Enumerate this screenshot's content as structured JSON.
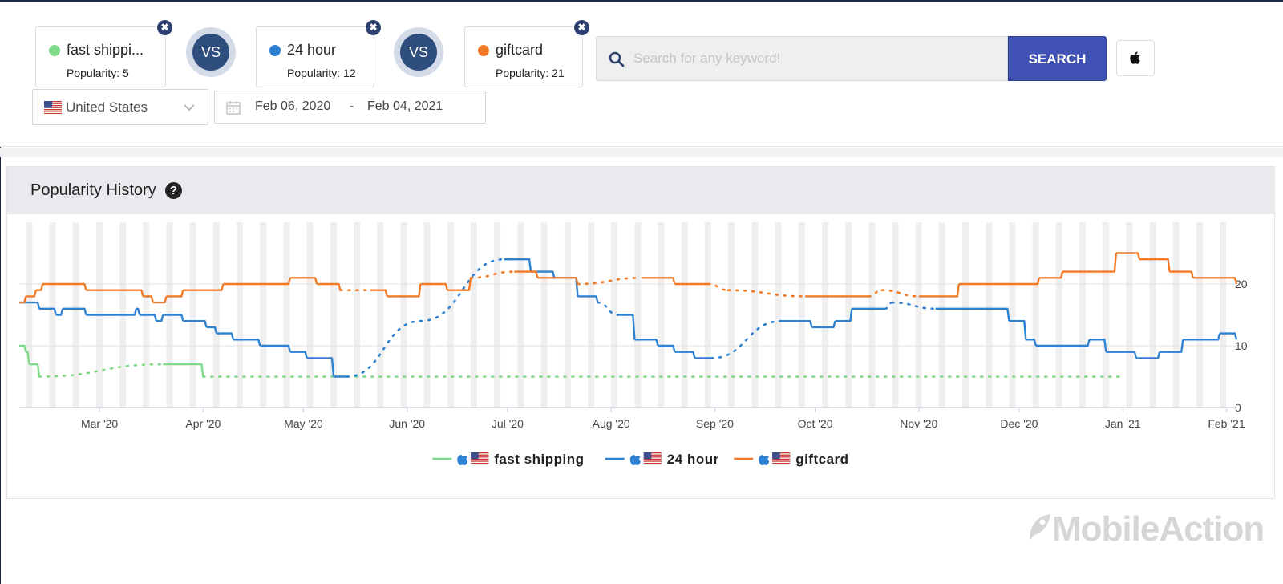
{
  "keywords": [
    {
      "name": "fast shippi...",
      "popularity_label": "Popularity: 5",
      "color": "#7ed989"
    },
    {
      "name": "24 hour",
      "popularity_label": "Popularity: 12",
      "color": "#2d80d2"
    },
    {
      "name": "giftcard",
      "popularity_label": "Popularity: 21",
      "color": "#f27a26"
    }
  ],
  "vs_label": "VS",
  "close_glyph": "✖",
  "search": {
    "placeholder": "Search for any keyword!",
    "button_label": "SEARCH"
  },
  "platform": {
    "icon": "apple-icon"
  },
  "country": {
    "label": "United States",
    "flag": "us-flag-icon"
  },
  "date_range": {
    "from": "Feb 06, 2020",
    "separator": "-",
    "to": "Feb 04, 2021"
  },
  "panel": {
    "title": "Popularity History",
    "help_glyph": "?"
  },
  "brand": {
    "name": "MobileAction"
  },
  "chart_data": {
    "type": "line",
    "x_tick_labels": [
      "Mar '20",
      "Apr '20",
      "May '20",
      "Jun '20",
      "Jul '20",
      "Aug '20",
      "Sep '20",
      "Oct '20",
      "Nov '20",
      "Dec '20",
      "Jan '21",
      "Feb '21"
    ],
    "y_tick_labels": [
      "0",
      "10",
      "20"
    ],
    "ylim": [
      0,
      30
    ],
    "xlim": [
      "2020-02-06",
      "2021-02-04"
    ],
    "grid": "horizontal",
    "legend_position": "bottom-center",
    "series": [
      {
        "name": "fast shipping",
        "color": "#7ed989",
        "points": [
          [
            "2020-02-06",
            10
          ],
          [
            "2020-02-08",
            9
          ],
          [
            "2020-02-09",
            7
          ],
          [
            "2020-02-11",
            7
          ],
          [
            "2020-02-12",
            5
          ],
          [
            "2020-03-20",
            7
          ],
          [
            "2020-03-31",
            7
          ],
          [
            "2020-04-01",
            5
          ],
          [
            "2021-01-01",
            5
          ]
        ],
        "dotted_ranges": [
          [
            "2020-02-12",
            "2020-03-20"
          ],
          [
            "2020-04-01",
            "2021-01-01"
          ]
        ]
      },
      {
        "name": "24 hour",
        "color": "#2d80d2",
        "points": [
          [
            "2020-02-06",
            17
          ],
          [
            "2020-02-07",
            17
          ],
          [
            "2020-02-08",
            17
          ],
          [
            "2020-02-12",
            16
          ],
          [
            "2020-02-17",
            15
          ],
          [
            "2020-02-19",
            16
          ],
          [
            "2020-02-26",
            15
          ],
          [
            "2020-03-10",
            15
          ],
          [
            "2020-03-12",
            16
          ],
          [
            "2020-03-13",
            15
          ],
          [
            "2020-03-18",
            14
          ],
          [
            "2020-03-20",
            15
          ],
          [
            "2020-03-26",
            14
          ],
          [
            "2020-03-31",
            14
          ],
          [
            "2020-04-02",
            13
          ],
          [
            "2020-04-05",
            12
          ],
          [
            "2020-04-10",
            11
          ],
          [
            "2020-04-18",
            10
          ],
          [
            "2020-04-27",
            9
          ],
          [
            "2020-05-02",
            8
          ],
          [
            "2020-05-08",
            8
          ],
          [
            "2020-05-10",
            5
          ],
          [
            "2020-05-14",
            5
          ],
          [
            "2020-06-05",
            14
          ],
          [
            "2020-06-30",
            24
          ],
          [
            "2020-07-03",
            24
          ],
          [
            "2020-07-08",
            22
          ],
          [
            "2020-07-15",
            21
          ],
          [
            "2020-07-22",
            18
          ],
          [
            "2020-07-28",
            17
          ],
          [
            "2020-08-03",
            15
          ],
          [
            "2020-08-08",
            11
          ],
          [
            "2020-08-15",
            10
          ],
          [
            "2020-08-20",
            9
          ],
          [
            "2020-08-26",
            8
          ],
          [
            "2020-08-31",
            8
          ],
          [
            "2020-09-21",
            14
          ],
          [
            "2020-09-30",
            13
          ],
          [
            "2020-10-07",
            14
          ],
          [
            "2020-10-12",
            16
          ],
          [
            "2020-10-22",
            16
          ],
          [
            "2020-10-24",
            17
          ],
          [
            "2020-11-06",
            16
          ],
          [
            "2020-11-16",
            16
          ],
          [
            "2020-11-21",
            16
          ],
          [
            "2020-11-28",
            14
          ],
          [
            "2020-12-03",
            11
          ],
          [
            "2020-12-06",
            10
          ],
          [
            "2020-12-16",
            10
          ],
          [
            "2020-12-22",
            11
          ],
          [
            "2020-12-27",
            9
          ],
          [
            "2021-01-05",
            8
          ],
          [
            "2021-01-12",
            9
          ],
          [
            "2021-01-19",
            11
          ],
          [
            "2021-01-27",
            11
          ],
          [
            "2021-01-30",
            12
          ],
          [
            "2021-02-04",
            11
          ]
        ],
        "dotted_ranges": [
          [
            "2020-05-14",
            "2020-07-01"
          ],
          [
            "2020-07-28",
            "2020-08-03"
          ],
          [
            "2020-08-31",
            "2020-09-21"
          ],
          [
            "2020-10-22",
            "2020-11-06"
          ],
          [
            "2021-01-30",
            "2021-02-02"
          ]
        ]
      },
      {
        "name": "giftcard",
        "color": "#f27a26",
        "points": [
          [
            "2020-02-06",
            17
          ],
          [
            "2020-02-08",
            18
          ],
          [
            "2020-02-11",
            19
          ],
          [
            "2020-02-13",
            20
          ],
          [
            "2020-02-26",
            19
          ],
          [
            "2020-03-14",
            18
          ],
          [
            "2020-03-17",
            17
          ],
          [
            "2020-03-21",
            18
          ],
          [
            "2020-03-26",
            19
          ],
          [
            "2020-04-07",
            20
          ],
          [
            "2020-04-27",
            21
          ],
          [
            "2020-05-05",
            20
          ],
          [
            "2020-05-12",
            19
          ],
          [
            "2020-05-21",
            19
          ],
          [
            "2020-05-26",
            18
          ],
          [
            "2020-06-05",
            20
          ],
          [
            "2020-06-13",
            19
          ],
          [
            "2020-06-20",
            21
          ],
          [
            "2020-07-03",
            22
          ],
          [
            "2020-07-10",
            21
          ],
          [
            "2020-07-22",
            20
          ],
          [
            "2020-08-10",
            21
          ],
          [
            "2020-08-20",
            20
          ],
          [
            "2020-08-30",
            20
          ],
          [
            "2020-09-05",
            19
          ],
          [
            "2020-09-28",
            18
          ],
          [
            "2020-10-17",
            18
          ],
          [
            "2020-10-21",
            19
          ],
          [
            "2020-11-01",
            18
          ],
          [
            "2020-11-08",
            18
          ],
          [
            "2020-11-13",
            20
          ],
          [
            "2020-11-23",
            20
          ],
          [
            "2020-12-07",
            21
          ],
          [
            "2020-12-14",
            22
          ],
          [
            "2020-12-24",
            22
          ],
          [
            "2020-12-30",
            25
          ],
          [
            "2021-01-06",
            24
          ],
          [
            "2021-01-15",
            22
          ],
          [
            "2021-01-22",
            21
          ],
          [
            "2021-01-27",
            21
          ],
          [
            "2021-02-04",
            20
          ]
        ],
        "dotted_ranges": [
          [
            "2020-05-12",
            "2020-05-21"
          ],
          [
            "2020-06-20",
            "2020-07-03"
          ],
          [
            "2020-07-22",
            "2020-08-10"
          ],
          [
            "2020-08-30",
            "2020-09-28"
          ],
          [
            "2020-10-17",
            "2020-11-01"
          ],
          [
            "2021-01-27",
            "2021-02-02"
          ]
        ]
      }
    ]
  }
}
